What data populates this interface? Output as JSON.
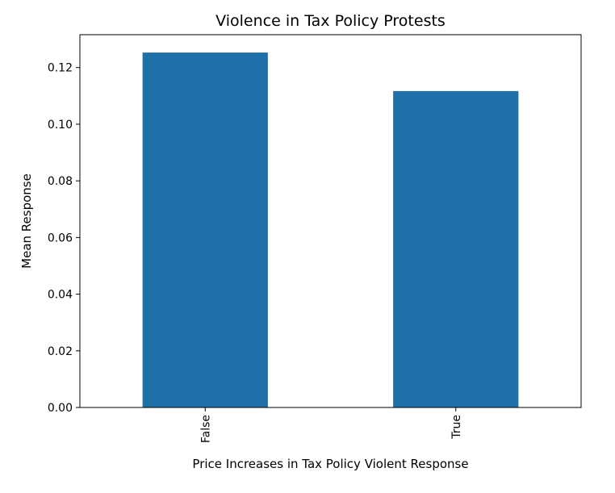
{
  "chart_data": {
    "type": "bar",
    "title": "Violence in Tax Policy Protests",
    "xlabel": "Price Increases in Tax Policy Violent Response",
    "ylabel": "Mean Response",
    "categories": [
      "False",
      "True"
    ],
    "values": [
      0.1253,
      0.1117
    ],
    "ylim": [
      0,
      0.1316
    ],
    "yticks": [
      0.0,
      0.02,
      0.04,
      0.06,
      0.08,
      0.1,
      0.12
    ],
    "ytick_labels": [
      "0.00",
      "0.02",
      "0.04",
      "0.06",
      "0.08",
      "0.10",
      "0.12"
    ],
    "bar_color": "#1f6fa8",
    "grid": false,
    "legend": "none"
  }
}
